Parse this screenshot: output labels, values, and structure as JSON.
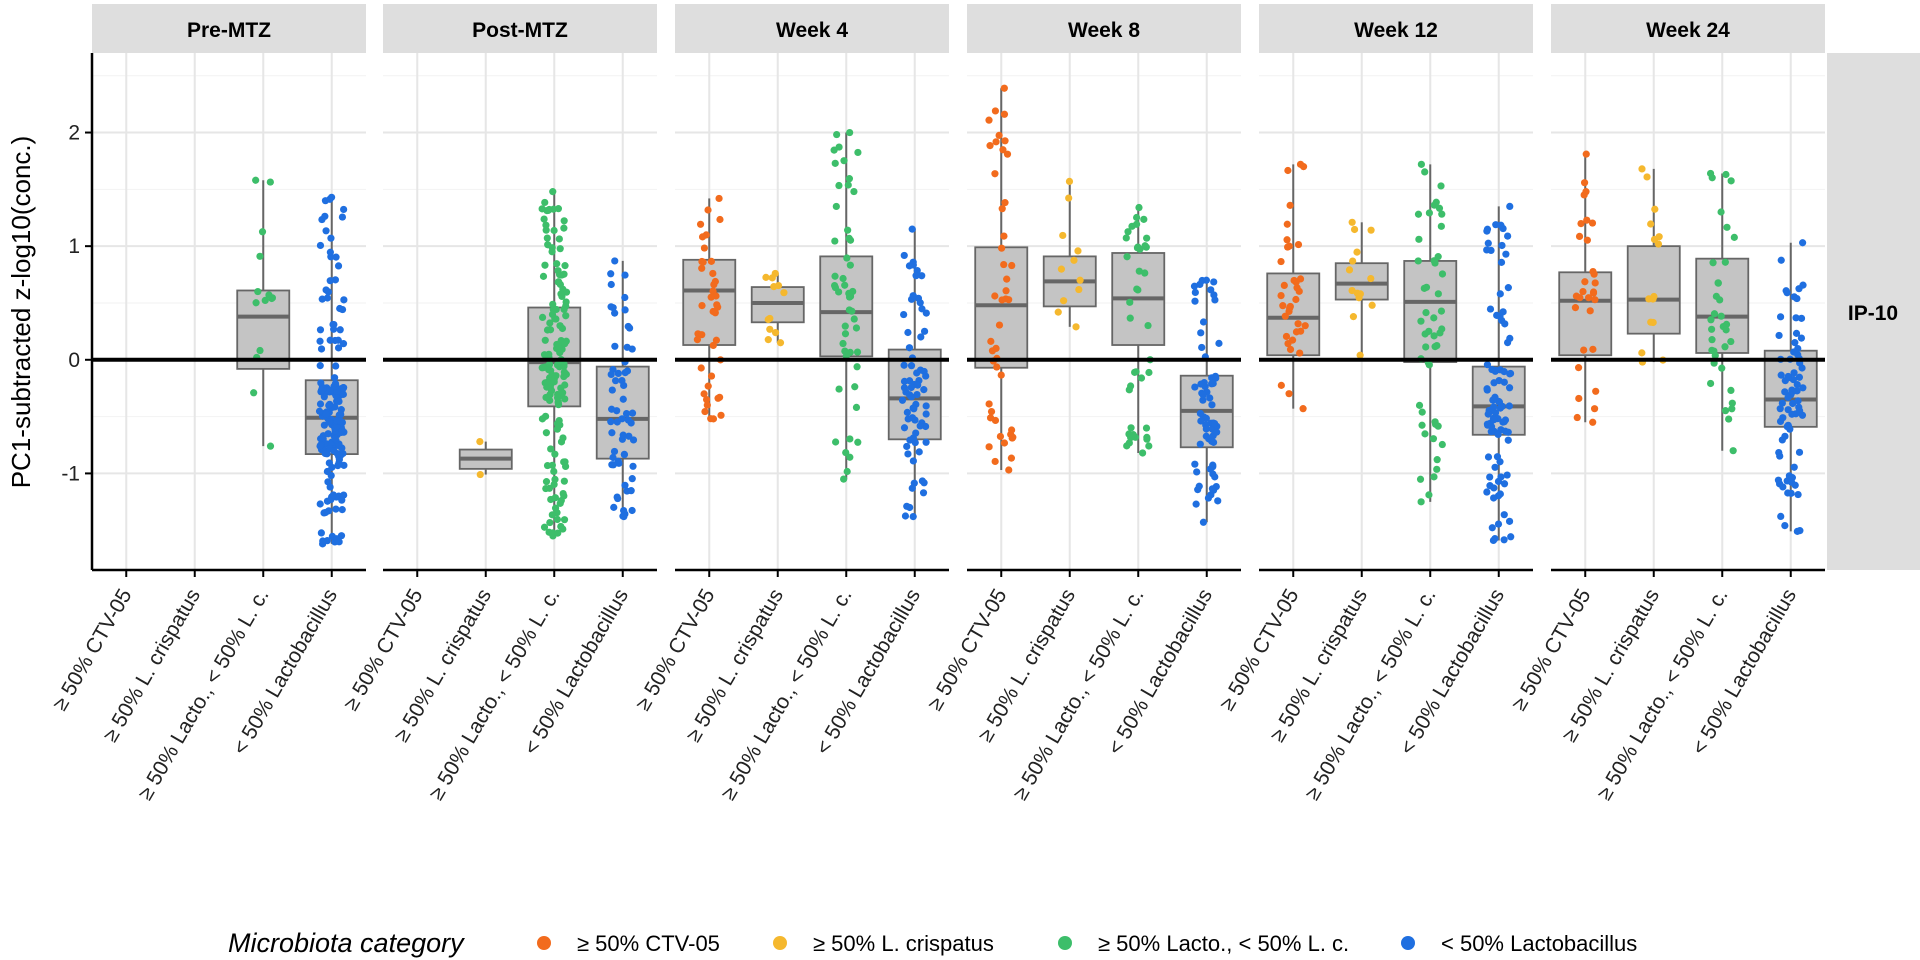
{
  "chart_data": {
    "type": "box_jitter",
    "ylabel": "PC1-subtracted z-log10(conc.)",
    "row_strip": "IP-10",
    "ylim": [
      -1.85,
      2.7
    ],
    "yticks": [
      -1,
      0,
      1,
      2
    ],
    "reference_line_y": 0,
    "grid": true,
    "legend": {
      "position": "bottom",
      "title": "Microbiota category",
      "entries": [
        "≥ 50% CTV-05",
        "≥ 50% L. crispatus",
        "≥ 50% Lacto., < 50% L. c.",
        "< 50% Lactobacillus"
      ]
    },
    "categories": [
      "≥ 50% CTV-05",
      "≥ 50% L. crispatus",
      "≥ 50% Lacto., < 50% L. c.",
      "< 50% Lactobacillus"
    ],
    "colors": [
      "#F26B1D",
      "#F5B82E",
      "#3DBE6A",
      "#1F6FE0"
    ],
    "panels": [
      {
        "facet": "Pre-MTZ",
        "boxes": [
          null,
          null,
          {
            "min": -0.76,
            "q1": -0.08,
            "median": 0.38,
            "q3": 0.61,
            "max": 1.58,
            "n": 14
          },
          {
            "min": -1.62,
            "q1": -0.83,
            "median": -0.51,
            "q3": -0.18,
            "max": 1.43,
            "n": 170
          }
        ]
      },
      {
        "facet": "Post-MTZ",
        "boxes": [
          null,
          {
            "min": -1.01,
            "q1": -0.96,
            "median": -0.87,
            "q3": -0.79,
            "max": -0.72,
            "n": 2
          },
          {
            "min": -1.55,
            "q1": -0.41,
            "median": -0.02,
            "q3": 0.46,
            "max": 1.48,
            "n": 150
          },
          {
            "min": -1.38,
            "q1": -0.87,
            "median": -0.52,
            "q3": -0.06,
            "max": 0.87,
            "n": 60
          }
        ]
      },
      {
        "facet": "Week 4",
        "boxes": [
          {
            "min": -0.52,
            "q1": 0.13,
            "median": 0.61,
            "q3": 0.88,
            "max": 1.42,
            "n": 40
          },
          {
            "min": 0.15,
            "q1": 0.33,
            "median": 0.5,
            "q3": 0.64,
            "max": 0.76,
            "n": 12
          },
          {
            "min": -1.05,
            "q1": 0.03,
            "median": 0.42,
            "q3": 0.91,
            "max": 2.0,
            "n": 50
          },
          {
            "min": -1.38,
            "q1": -0.7,
            "median": -0.34,
            "q3": 0.09,
            "max": 1.15,
            "n": 70
          }
        ]
      },
      {
        "facet": "Week 8",
        "boxes": [
          {
            "min": -0.97,
            "q1": -0.07,
            "median": 0.48,
            "q3": 0.99,
            "max": 2.39,
            "n": 45
          },
          {
            "min": 0.29,
            "q1": 0.47,
            "median": 0.69,
            "q3": 0.91,
            "max": 1.57,
            "n": 11
          },
          {
            "min": -0.82,
            "q1": 0.13,
            "median": 0.54,
            "q3": 0.94,
            "max": 1.34,
            "n": 40
          },
          {
            "min": -1.43,
            "q1": -0.77,
            "median": -0.45,
            "q3": -0.14,
            "max": 0.7,
            "n": 65
          }
        ]
      },
      {
        "facet": "Week 12",
        "boxes": [
          {
            "min": -0.43,
            "q1": 0.04,
            "median": 0.37,
            "q3": 0.76,
            "max": 1.72,
            "n": 35
          },
          {
            "min": 0.04,
            "q1": 0.53,
            "median": 0.67,
            "q3": 0.85,
            "max": 1.21,
            "n": 14
          },
          {
            "min": -1.25,
            "q1": -0.02,
            "median": 0.51,
            "q3": 0.87,
            "max": 1.72,
            "n": 50
          },
          {
            "min": -1.59,
            "q1": -0.66,
            "median": -0.41,
            "q3": -0.06,
            "max": 1.35,
            "n": 90
          }
        ]
      },
      {
        "facet": "Week 24",
        "boxes": [
          {
            "min": -0.55,
            "q1": 0.04,
            "median": 0.52,
            "q3": 0.77,
            "max": 1.81,
            "n": 30
          },
          {
            "min": -0.02,
            "q1": 0.23,
            "median": 0.53,
            "q3": 1.0,
            "max": 1.68,
            "n": 15
          },
          {
            "min": -0.8,
            "q1": 0.06,
            "median": 0.38,
            "q3": 0.89,
            "max": 1.64,
            "n": 35
          },
          {
            "min": -1.51,
            "q1": -0.59,
            "median": -0.35,
            "q3": 0.08,
            "max": 1.03,
            "n": 75
          }
        ]
      }
    ]
  }
}
